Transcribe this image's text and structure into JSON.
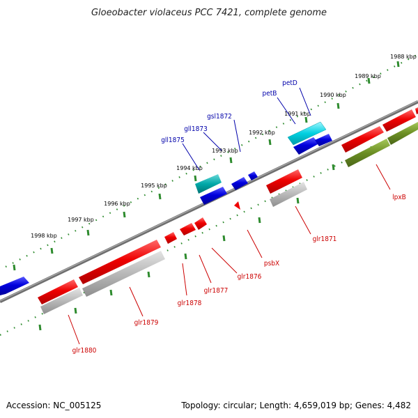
{
  "title": "Gloeobacter violaceus PCC 7421, complete genome",
  "footer": {
    "accession": "Accession: NC_005125",
    "summary": "Topology: circular; Length: 4,659,019 bp; Genes: 4,482"
  },
  "colors": {
    "forward_gene": "#0000dd",
    "reverse_gene": "#ee0000",
    "rna_cyan": "#00c8d8",
    "teal_gene": "#00a8a8",
    "olive_gene": "#6b8e23",
    "cds_gray": "#b8b8b8",
    "dotted_ring": "#2e8b2e",
    "backbone": "#808080",
    "label_forward": "#0000aa",
    "label_reverse": "#cc0000"
  },
  "kbp_marks": [
    "1988 kbp",
    "1989 kbp",
    "1990 kbp",
    "1991 kbp",
    "1992 kbp",
    "1993 kbp",
    "1994 kbp",
    "1995 kbp",
    "1996 kbp",
    "1997 kbp",
    "1998 kbp"
  ],
  "genes_forward": [
    "petD",
    "petB",
    "gsl1872",
    "gll1873",
    "gll1875"
  ],
  "genes_reverse": [
    "lpxB",
    "glr1871",
    "psbX",
    "glr1876",
    "glr1877",
    "glr1878",
    "glr1879",
    "glr1880"
  ]
}
